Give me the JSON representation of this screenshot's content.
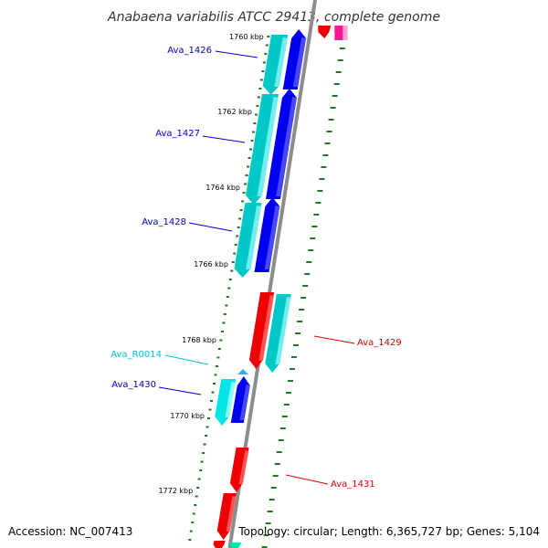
{
  "title": "Anabaena variabilis ATCC 29413, complete genome",
  "footer": {
    "accession": "Accession: NC_007413",
    "info": "Topology: circular; Length: 6,365,727 bp; Genes: 5,104"
  },
  "colors": {
    "axis": "#8c8c8c",
    "tick_dash": "#1f7a1f",
    "blue": "#0000ee",
    "cyan": "#00c8c8",
    "red": "#ee0000",
    "magenta": "#ff1493",
    "rna": "#00e6e6",
    "label_blue": "#0000cc",
    "label_red": "#dd0000",
    "label_rna": "#00bfdf"
  },
  "ticks": [
    "1760 kbp",
    "1762 kbp",
    "1764 kbp",
    "1766 kbp",
    "1768 kbp",
    "1770 kbp",
    "1772 kbp"
  ],
  "genes": [
    {
      "name": "Ava_1426",
      "color": "blue"
    },
    {
      "name": "Ava_1427",
      "color": "blue"
    },
    {
      "name": "Ava_1428",
      "color": "blue"
    },
    {
      "name": "Ava_1429",
      "color": "red"
    },
    {
      "name": "Ava_R0014",
      "color": "rna"
    },
    {
      "name": "Ava_1430",
      "color": "blue"
    },
    {
      "name": "Ava_1431",
      "color": "red"
    }
  ]
}
